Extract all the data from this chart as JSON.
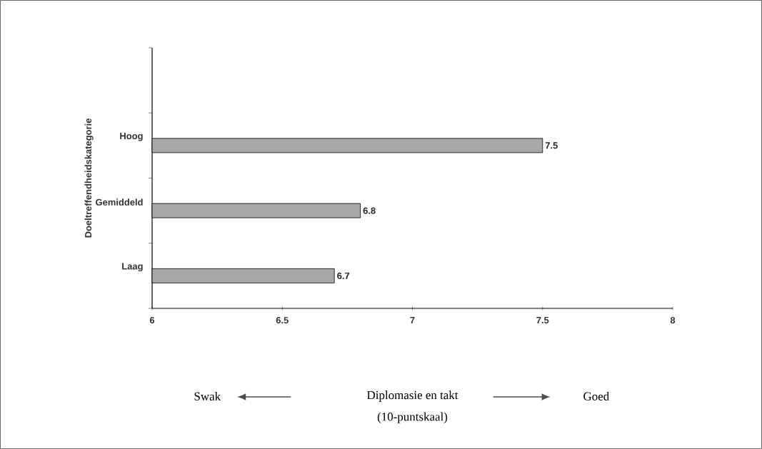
{
  "chart_data": {
    "type": "bar",
    "orientation": "horizontal",
    "categories": [
      null,
      "Hoog",
      "Gemiddeld",
      "Laag"
    ],
    "values": [
      null,
      7.5,
      6.8,
      6.7
    ],
    "color": "#a8a8a8",
    "ylabel": "Doeltreffendheidskategorie",
    "annotations": [
      "Diplomasie en takt",
      "(10-puntskaal)",
      "Swak",
      "Goed"
    ],
    "xlim": [
      6,
      8
    ],
    "xticks": [
      6,
      6.5,
      7,
      7.5,
      8
    ],
    "data_labels": true
  }
}
